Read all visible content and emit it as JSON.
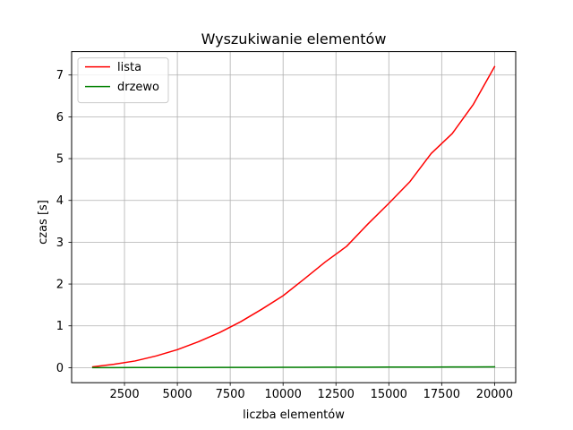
{
  "chart_data": {
    "type": "line",
    "title": "Wyszukiwanie elementów",
    "xlabel": "liczba elementów",
    "ylabel": "czas [s]",
    "xlim": [
      0,
      21000
    ],
    "ylim": [
      -0.36,
      7.56
    ],
    "xticks": [
      2500,
      5000,
      7500,
      10000,
      12500,
      15000,
      17500,
      20000
    ],
    "yticks": [
      0,
      1,
      2,
      3,
      4,
      5,
      6,
      7
    ],
    "grid": true,
    "legend_position": "upper-left",
    "x": [
      1000,
      2000,
      3000,
      4000,
      5000,
      6000,
      7000,
      8000,
      9000,
      10000,
      11000,
      12000,
      13000,
      14000,
      15000,
      16000,
      17000,
      18000,
      19000,
      20000
    ],
    "series": [
      {
        "name": "lista",
        "color": "#ff0000",
        "values": [
          0.02,
          0.08,
          0.16,
          0.28,
          0.43,
          0.62,
          0.84,
          1.1,
          1.4,
          1.72,
          2.12,
          2.53,
          2.9,
          3.43,
          3.93,
          4.45,
          5.12,
          5.6,
          6.3,
          7.2
        ]
      },
      {
        "name": "drzewo",
        "color": "#008000",
        "values": [
          0.0,
          0.001,
          0.002,
          0.002,
          0.003,
          0.004,
          0.005,
          0.006,
          0.007,
          0.008,
          0.009,
          0.01,
          0.011,
          0.012,
          0.013,
          0.014,
          0.015,
          0.016,
          0.017,
          0.018
        ]
      }
    ]
  }
}
